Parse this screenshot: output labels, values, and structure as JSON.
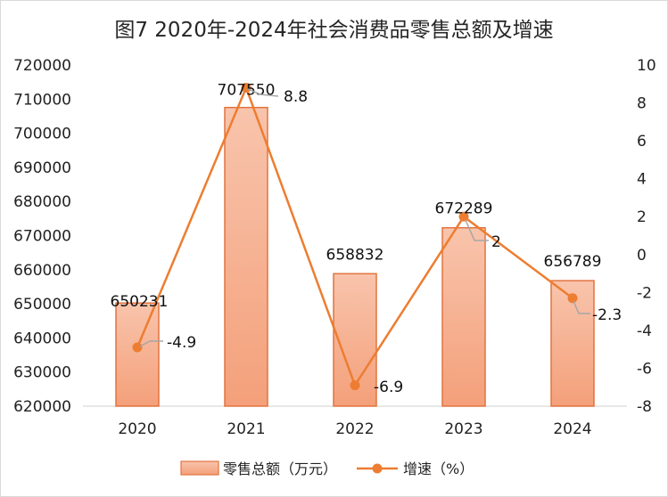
{
  "chart_data": {
    "type": "bar",
    "title": "图7  2020年-2024年社会消费品零售总额及增速",
    "categories": [
      "2020",
      "2021",
      "2022",
      "2023",
      "2024"
    ],
    "series": [
      {
        "name": "零售总额（万元）",
        "type": "bar",
        "axis": "left",
        "values": [
          650231,
          707550,
          658832,
          672289,
          656789
        ],
        "labels": [
          "650231",
          "707550",
          "658832",
          "672289",
          "656789"
        ]
      },
      {
        "name": "增速（%）",
        "type": "line",
        "axis": "right",
        "values": [
          -4.9,
          8.8,
          -6.9,
          2,
          -2.3
        ],
        "labels": [
          "-4.9",
          "8.8",
          "-6.9",
          "2",
          "-2.3"
        ]
      }
    ],
    "y_left": {
      "min": 620000,
      "max": 720000,
      "step": 10000,
      "ticks": [
        "720000",
        "710000",
        "700000",
        "690000",
        "680000",
        "670000",
        "660000",
        "650000",
        "640000",
        "630000",
        "620000"
      ]
    },
    "y_right": {
      "min": -8,
      "max": 10,
      "step": 2,
      "ticks": [
        "10",
        "8",
        "6",
        "4",
        "2",
        "0",
        "-2",
        "-4",
        "-6",
        "-8"
      ]
    },
    "grid": false,
    "legend": "bottom",
    "colors": {
      "bar_top": "#f8c4ac",
      "bar_bottom": "#f4a07a",
      "bar_border": "#e2733f",
      "line": "#ed7d31",
      "leader": "#a6a6a6"
    }
  }
}
